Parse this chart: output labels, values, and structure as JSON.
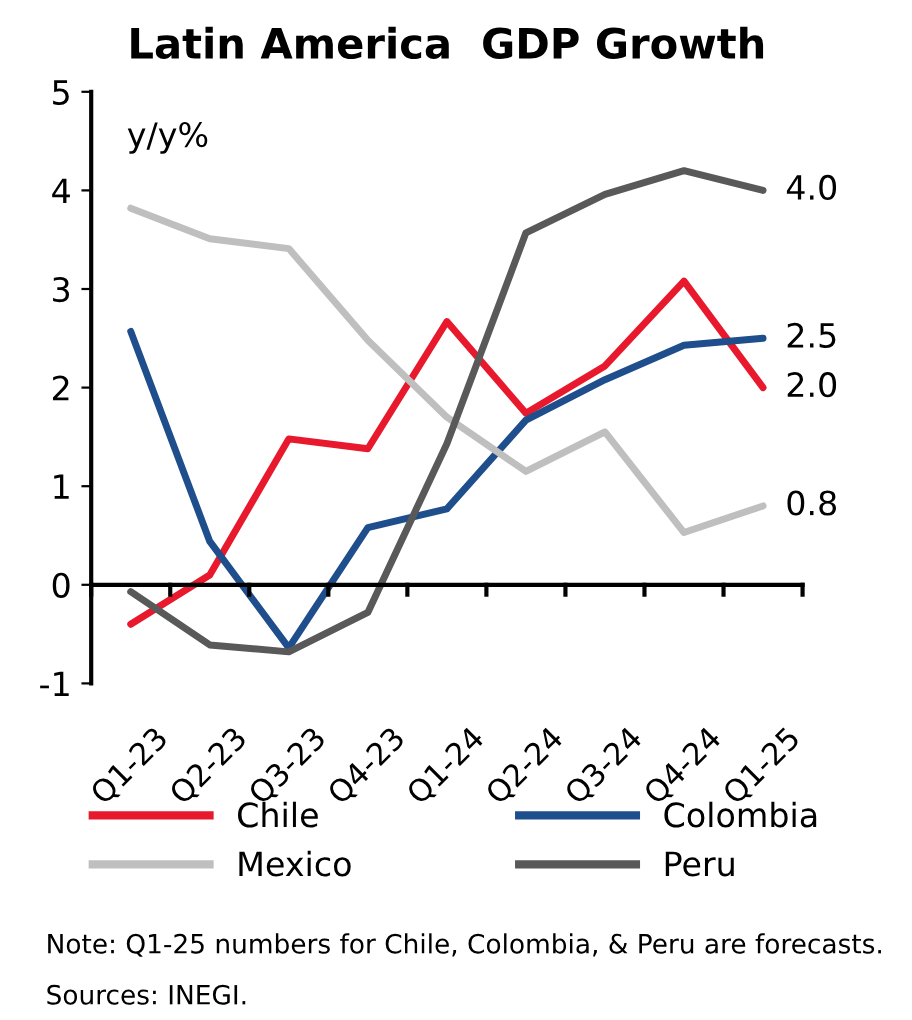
{
  "chart_data": {
    "type": "line",
    "title": "Latin America  GDP Growth",
    "ylabel": "y/y%",
    "categories": [
      "Q1-23",
      "Q2-23",
      "Q3-23",
      "Q4-23",
      "Q1-24",
      "Q2-24",
      "Q3-24",
      "Q4-24",
      "Q1-25"
    ],
    "series": [
      {
        "name": "Chile",
        "color": "#e8192c",
        "values": [
          -0.4,
          0.1,
          1.48,
          1.38,
          2.67,
          1.74,
          2.22,
          3.08,
          2.0
        ],
        "value_labels": [
          null,
          null,
          null,
          null,
          null,
          null,
          null,
          null,
          "2.0"
        ]
      },
      {
        "name": "Colombia",
        "color": "#1f4e8c",
        "values": [
          2.57,
          0.44,
          -0.64,
          0.58,
          0.77,
          1.67,
          2.08,
          2.43,
          2.5
        ],
        "value_labels": [
          null,
          null,
          null,
          null,
          null,
          null,
          null,
          null,
          "2.5"
        ]
      },
      {
        "name": "Mexico",
        "color": "#bfbfbf",
        "values": [
          3.82,
          3.51,
          3.41,
          2.48,
          1.7,
          1.15,
          1.55,
          0.53,
          0.8
        ],
        "value_labels": [
          null,
          null,
          null,
          null,
          null,
          null,
          null,
          null,
          "0.8"
        ]
      },
      {
        "name": "Peru",
        "color": "#595959",
        "values": [
          -0.07,
          -0.61,
          -0.68,
          -0.28,
          1.43,
          3.57,
          3.96,
          4.2,
          4.0
        ],
        "value_labels": [
          null,
          null,
          null,
          null,
          null,
          null,
          null,
          null,
          "4.0"
        ]
      }
    ],
    "ylim": [
      -1,
      5
    ],
    "yticks": [
      -1,
      0,
      1,
      2,
      3,
      4,
      5
    ],
    "legend": "bottom",
    "marker": "none",
    "line_style": "solid",
    "annotations": [
      "Note: Q1-25 numbers for Chile, Colombia, & Peru are forecasts.",
      "Sources: INEGI."
    ]
  }
}
